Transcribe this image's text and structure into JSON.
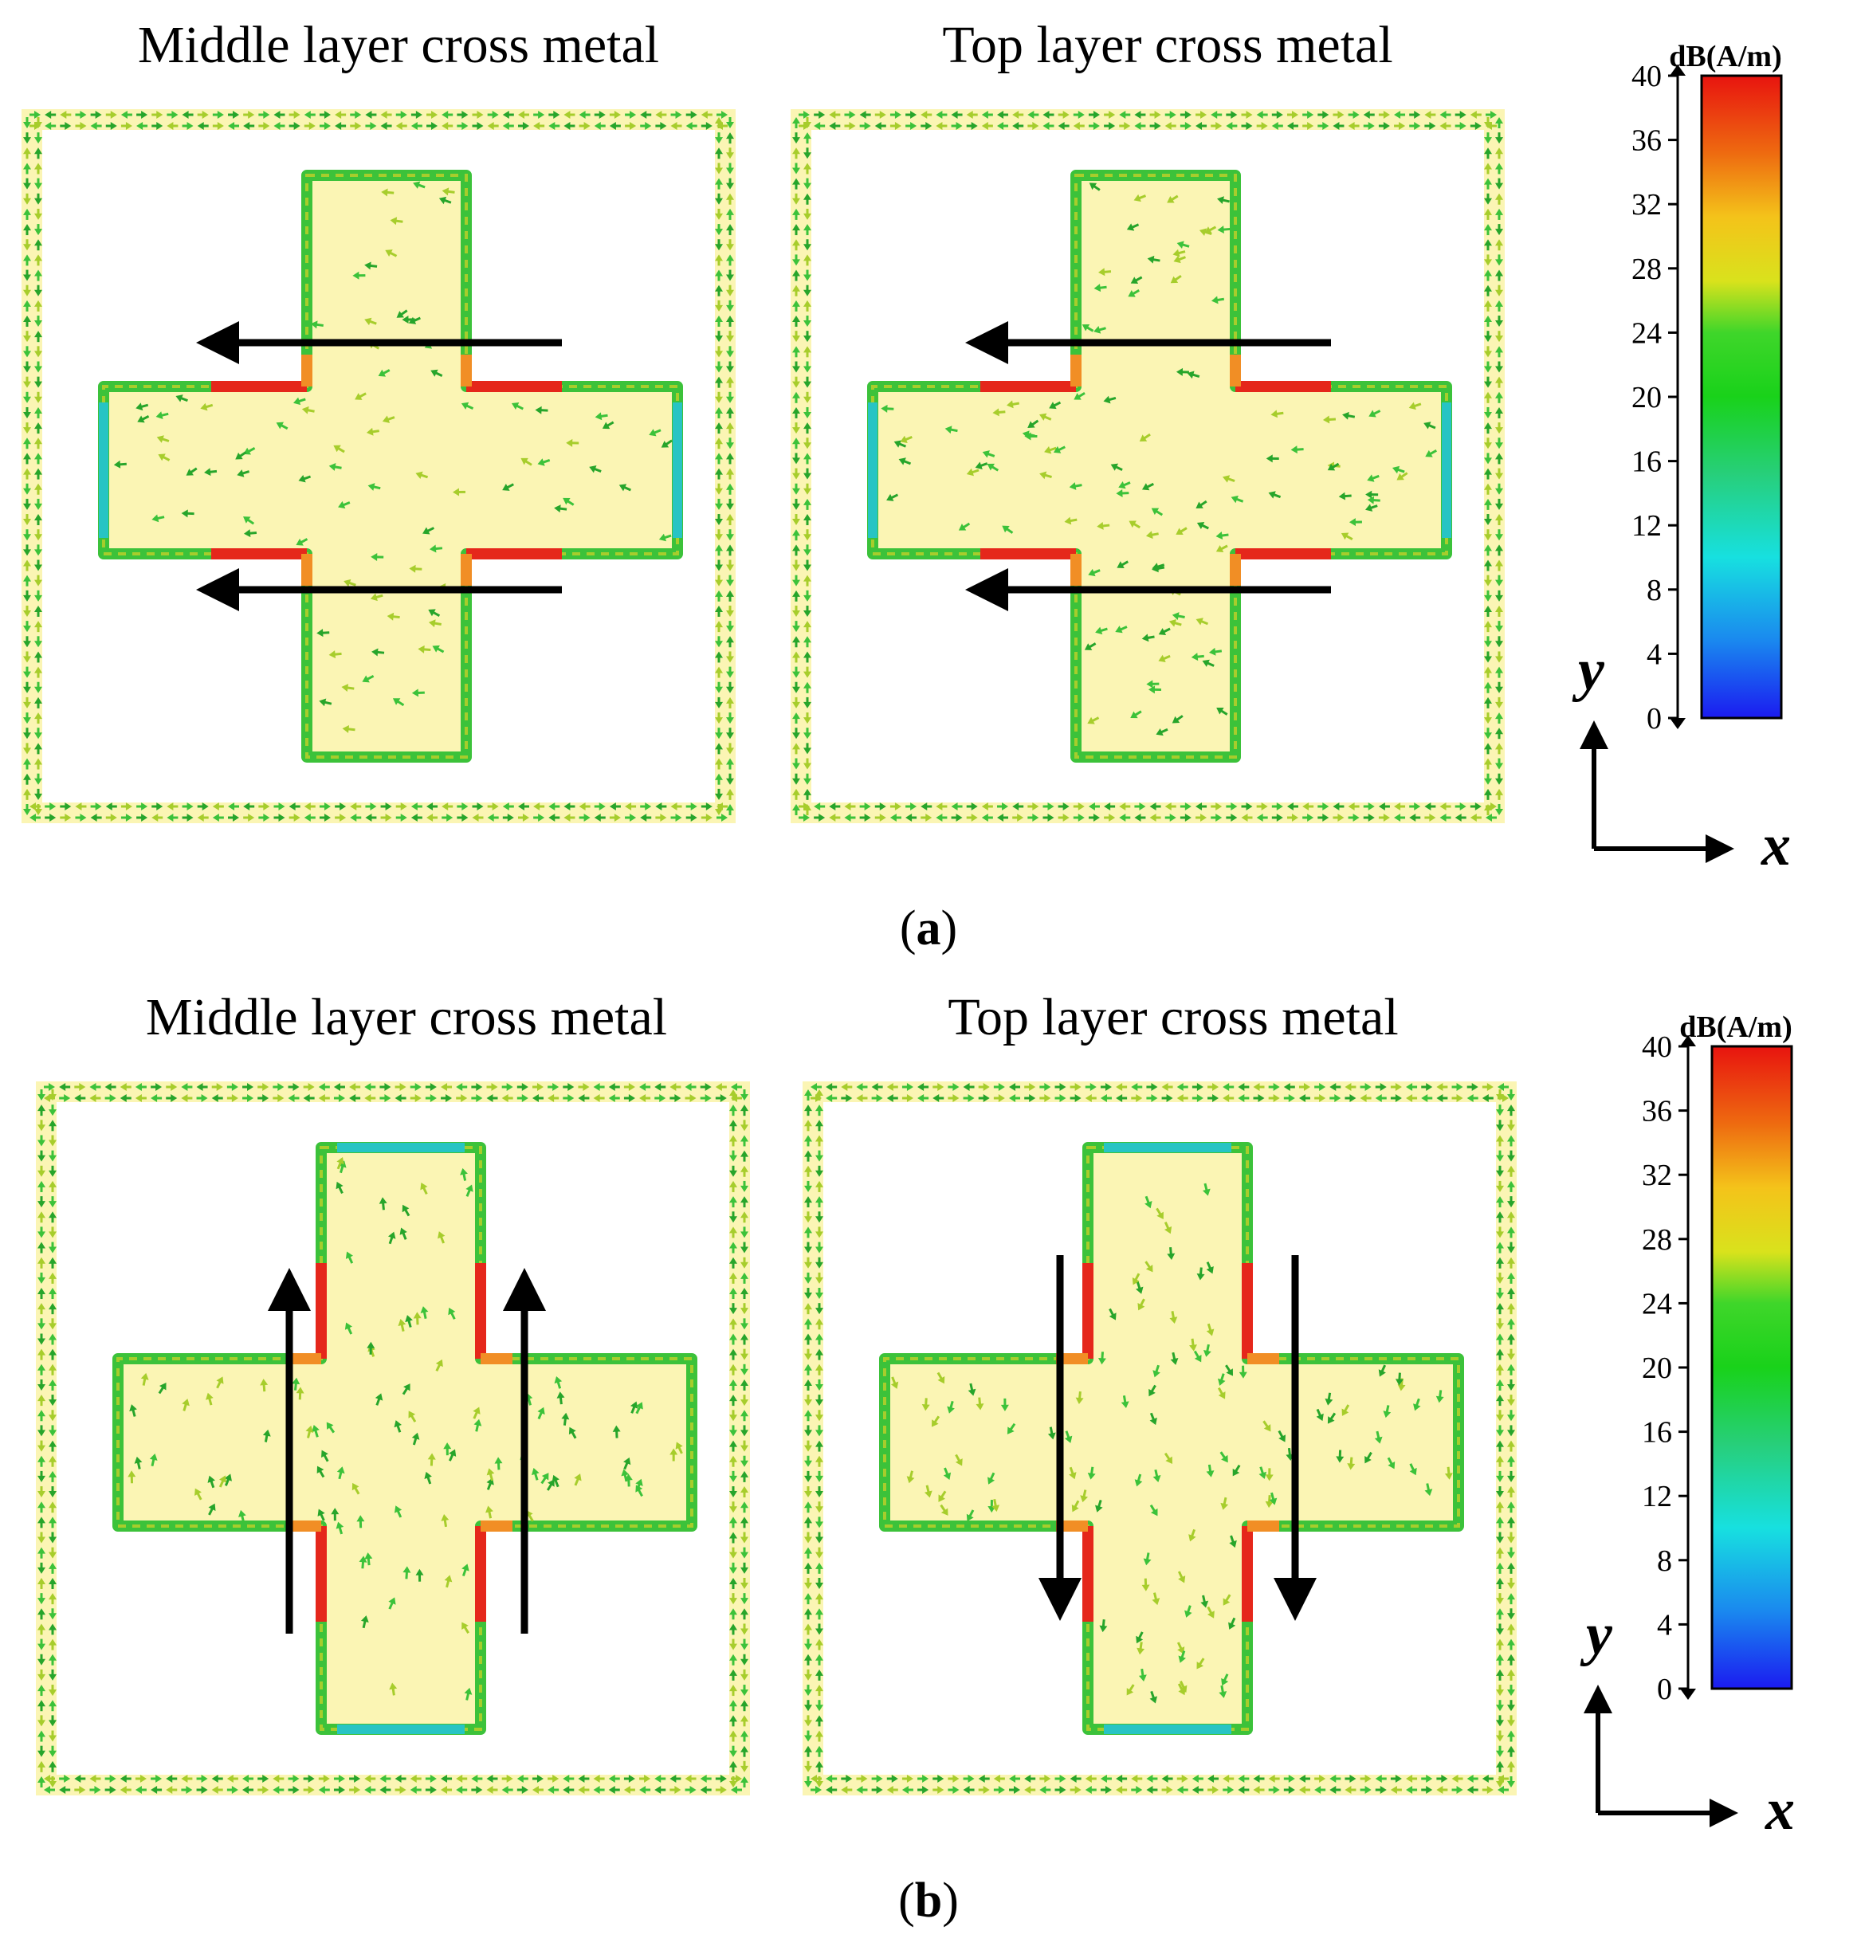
{
  "figure": {
    "panels": [
      {
        "id": "a",
        "caption_letter": "a",
        "plots": [
          {
            "title": "Middle layer cross metal",
            "current_direction": "left"
          },
          {
            "title": "Top layer cross metal",
            "current_direction": "left"
          }
        ]
      },
      {
        "id": "b",
        "caption_letter": "b",
        "plots": [
          {
            "title": "Middle layer cross metal",
            "current_direction": "up"
          },
          {
            "title": "Top layer cross metal",
            "current_direction": "down"
          }
        ]
      }
    ],
    "colorbar": {
      "unit_label": "dB(A/m)",
      "min": 0,
      "max": 40,
      "ticks": [
        "40",
        "36",
        "32",
        "28",
        "24",
        "20",
        "16",
        "12",
        "8",
        "4",
        "0"
      ],
      "colors": [
        "#e8140f",
        "#ee6a10",
        "#f4c31a",
        "#d9e21c",
        "#3fd62a",
        "#19d21a",
        "#27cf7a",
        "#17e0e0",
        "#1a88ef",
        "#1b1bf0"
      ]
    },
    "axes": {
      "x_label": "x",
      "y_label": "y"
    },
    "colors": {
      "metal_fill": "#fbf5b4",
      "arrow_green": "#3cc23a",
      "arrow_dark_green": "#27a52b",
      "arrow_yellowgreen": "#a7cd2c",
      "arrow_red": "#e5271b",
      "arrow_orange": "#f18e25",
      "arrow_cyan": "#27c4c4",
      "indicator": "#000000"
    }
  }
}
